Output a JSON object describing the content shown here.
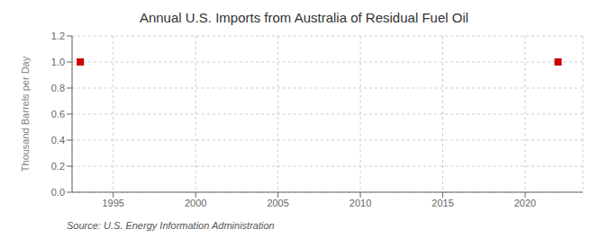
{
  "chart_data": {
    "type": "scatter",
    "title": "Annual U.S. Imports from Australia of Residual Fuel Oil",
    "ylabel": "Thousand Barrels per Day",
    "annotations": [
      "Source: U.S. Energy Information Administration"
    ],
    "x": [
      1993,
      2022
    ],
    "values": [
      1.0,
      1.0
    ],
    "color": "#cc0000",
    "marker": "square",
    "xlim": [
      1992.5,
      2023.5
    ],
    "ylim": [
      0.0,
      1.2
    ],
    "xticks": [
      1995,
      2000,
      2005,
      2010,
      2015,
      2020
    ],
    "yticks": [
      {
        "value": 0.0,
        "label": "0.0"
      },
      {
        "value": 0.2,
        "label": "0.2"
      },
      {
        "value": 0.4,
        "label": "0.4"
      },
      {
        "value": 0.6,
        "label": "0.6"
      },
      {
        "value": 0.8,
        "label": "0.8"
      },
      {
        "value": 1.0,
        "label": "1.0"
      },
      {
        "value": 1.2,
        "label": "1.2"
      }
    ],
    "grid": true
  }
}
